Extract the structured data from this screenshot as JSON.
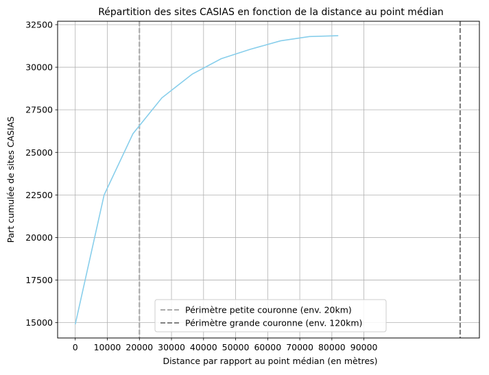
{
  "chart_data": {
    "type": "line",
    "title": "Répartition des sites CASIAS en fonction de la distance au point médian",
    "xlabel": "Distance par rapport au point médian (en mètres)",
    "ylabel": "Part cumulée de sites CASIAS",
    "xlim": [
      -5500,
      126000
    ],
    "ylim": [
      14100,
      32700
    ],
    "x_ticks": [
      0,
      10000,
      20000,
      30000,
      40000,
      50000,
      60000,
      70000,
      80000,
      90000
    ],
    "y_ticks": [
      15000,
      17500,
      20000,
      22500,
      25000,
      27500,
      30000,
      32500
    ],
    "x_tick_labels": [
      "0",
      "10000",
      "20000",
      "30000",
      "40000",
      "50000",
      "60000",
      "70000",
      "80000",
      "90000"
    ],
    "y_tick_labels": [
      "15000",
      "17500",
      "20000",
      "22500",
      "25000",
      "27500",
      "30000",
      "32500"
    ],
    "grid": true,
    "series": [
      {
        "color": "#87CEEB",
        "x": [
          0,
          9000,
          18000,
          27000,
          36500,
          45500,
          54500,
          64000,
          73000,
          82000
        ],
        "y": [
          14900,
          22500,
          26100,
          28200,
          29600,
          30500,
          31050,
          31550,
          31800,
          31850
        ]
      }
    ],
    "reference_lines": [
      {
        "x": 20000,
        "label": "Périmètre petite couronne (env. 20km)",
        "color": "#aaaaaa",
        "style": "dashed"
      },
      {
        "x": 120000,
        "label": "Périmètre grande couronne (env. 120km)",
        "color": "#808080",
        "style": "dashed"
      }
    ],
    "legend_position": "bottom-center"
  }
}
